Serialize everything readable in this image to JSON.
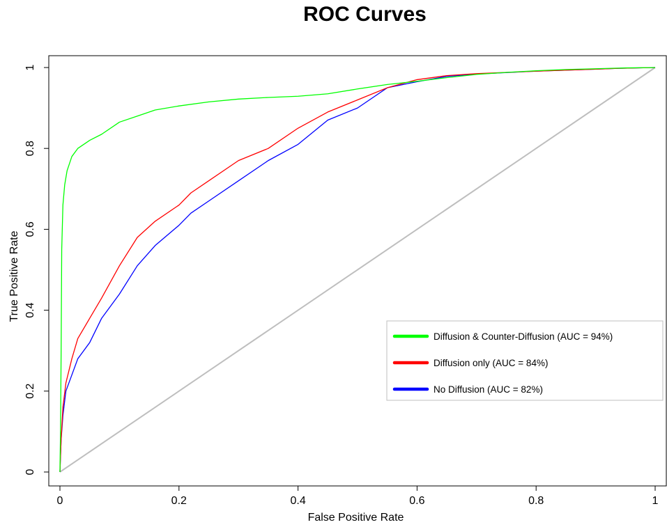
{
  "chart_data": {
    "type": "line",
    "title": "ROC Curves",
    "xlabel": "False Positive Rate",
    "ylabel": "True Positive Rate",
    "xlim": [
      0,
      1
    ],
    "ylim": [
      0,
      1
    ],
    "x_ticks": [
      "0",
      "0.2",
      "0.4",
      "0.6",
      "0.8",
      "1"
    ],
    "y_ticks": [
      "0",
      "0.2",
      "0.4",
      "0.6",
      "0.8",
      "1"
    ],
    "grid": false,
    "legend_position": "center-right",
    "reference_line": {
      "points": [
        [
          0,
          0
        ],
        [
          1,
          1
        ]
      ],
      "color": "#bebebe"
    },
    "series": [
      {
        "name": "Diffusion & Counter-Diffusion (AUC = 94%)",
        "color": "#00ff00",
        "points": [
          [
            0,
            0
          ],
          [
            0.001,
            0.1
          ],
          [
            0.002,
            0.3
          ],
          [
            0.003,
            0.55
          ],
          [
            0.005,
            0.66
          ],
          [
            0.008,
            0.71
          ],
          [
            0.012,
            0.745
          ],
          [
            0.02,
            0.78
          ],
          [
            0.03,
            0.8
          ],
          [
            0.05,
            0.82
          ],
          [
            0.07,
            0.835
          ],
          [
            0.1,
            0.865
          ],
          [
            0.13,
            0.88
          ],
          [
            0.16,
            0.895
          ],
          [
            0.2,
            0.905
          ],
          [
            0.25,
            0.915
          ],
          [
            0.3,
            0.922
          ],
          [
            0.35,
            0.926
          ],
          [
            0.4,
            0.929
          ],
          [
            0.45,
            0.935
          ],
          [
            0.5,
            0.947
          ],
          [
            0.55,
            0.958
          ],
          [
            0.6,
            0.966
          ],
          [
            0.65,
            0.975
          ],
          [
            0.7,
            0.983
          ],
          [
            0.75,
            0.988
          ],
          [
            0.8,
            0.992
          ],
          [
            0.85,
            0.995
          ],
          [
            0.9,
            0.997
          ],
          [
            0.95,
            0.999
          ],
          [
            1,
            1
          ]
        ]
      },
      {
        "name": "Diffusion only (AUC = 84%)",
        "color": "#ff0000",
        "points": [
          [
            0,
            0
          ],
          [
            0.002,
            0.08
          ],
          [
            0.005,
            0.16
          ],
          [
            0.01,
            0.22
          ],
          [
            0.02,
            0.28
          ],
          [
            0.03,
            0.33
          ],
          [
            0.05,
            0.38
          ],
          [
            0.07,
            0.43
          ],
          [
            0.1,
            0.51
          ],
          [
            0.13,
            0.58
          ],
          [
            0.16,
            0.62
          ],
          [
            0.2,
            0.66
          ],
          [
            0.22,
            0.69
          ],
          [
            0.25,
            0.72
          ],
          [
            0.3,
            0.77
          ],
          [
            0.35,
            0.8
          ],
          [
            0.4,
            0.85
          ],
          [
            0.45,
            0.89
          ],
          [
            0.5,
            0.92
          ],
          [
            0.55,
            0.95
          ],
          [
            0.6,
            0.97
          ],
          [
            0.65,
            0.98
          ],
          [
            0.7,
            0.985
          ],
          [
            0.8,
            0.991
          ],
          [
            0.9,
            0.996
          ],
          [
            0.94,
            0.998
          ],
          [
            1,
            1
          ]
        ]
      },
      {
        "name": "No Diffusion (AUC = 82%)",
        "color": "#0000ff",
        "points": [
          [
            0,
            0
          ],
          [
            0.002,
            0.08
          ],
          [
            0.005,
            0.14
          ],
          [
            0.01,
            0.2
          ],
          [
            0.02,
            0.24
          ],
          [
            0.03,
            0.28
          ],
          [
            0.05,
            0.32
          ],
          [
            0.07,
            0.38
          ],
          [
            0.1,
            0.44
          ],
          [
            0.13,
            0.51
          ],
          [
            0.16,
            0.56
          ],
          [
            0.2,
            0.61
          ],
          [
            0.22,
            0.64
          ],
          [
            0.25,
            0.67
          ],
          [
            0.3,
            0.72
          ],
          [
            0.35,
            0.77
          ],
          [
            0.4,
            0.81
          ],
          [
            0.45,
            0.87
          ],
          [
            0.5,
            0.9
          ],
          [
            0.55,
            0.95
          ],
          [
            0.6,
            0.965
          ],
          [
            0.65,
            0.978
          ],
          [
            0.7,
            0.984
          ],
          [
            0.8,
            0.991
          ],
          [
            0.9,
            0.996
          ],
          [
            0.94,
            0.998
          ],
          [
            1,
            1
          ]
        ]
      }
    ]
  }
}
